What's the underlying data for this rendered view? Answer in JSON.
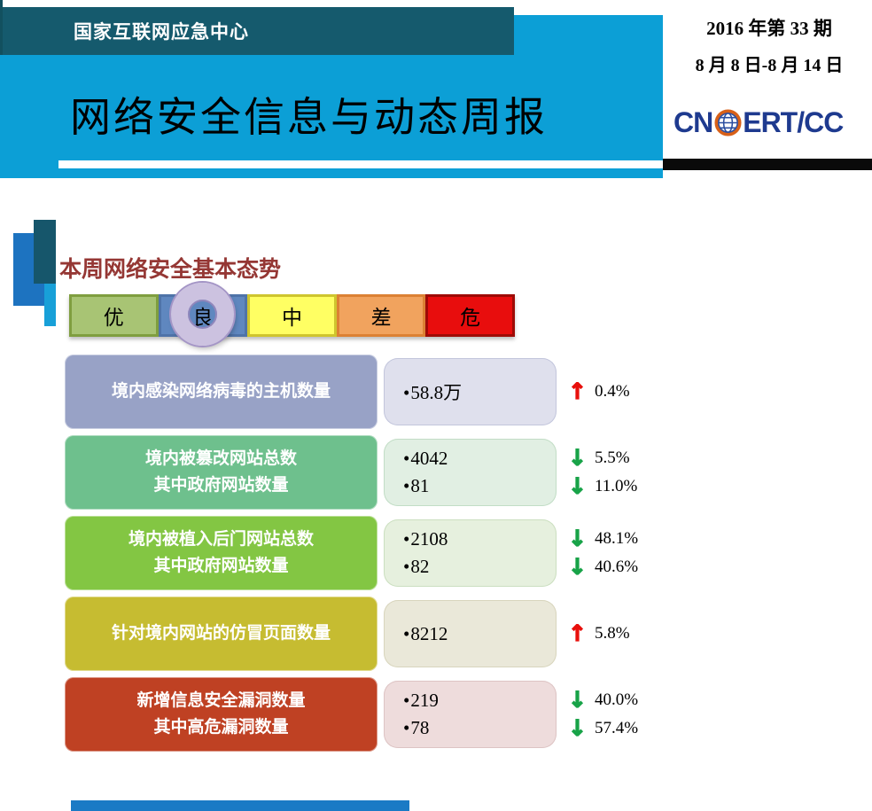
{
  "header": {
    "agency": "国家互联网应急中心",
    "title": "网络安全信息与动态周报",
    "issue": "2016 年第 33 期",
    "date_range": "8 月 8 日-8 月 14 日",
    "logo_left": "CN",
    "logo_right": "ERT/CC"
  },
  "section": {
    "title": "本周网络安全基本态势"
  },
  "scale": {
    "current_level": "良",
    "levels": [
      {
        "label": "优",
        "fill": "#a8c474",
        "border": "#7f9e3f",
        "current": false
      },
      {
        "label": "良",
        "fill": "#5f87bf",
        "border": "#4f73a8",
        "current": true
      },
      {
        "label": "中",
        "fill": "#ffff63",
        "border": "#cfc52e",
        "current": false
      },
      {
        "label": "差",
        "fill": "#f1a35e",
        "border": "#dc8134",
        "current": false
      },
      {
        "label": "危",
        "fill": "#e80d0d",
        "border": "#9e0b06",
        "current": false
      }
    ]
  },
  "rows": [
    {
      "label_lines": [
        "境内感染网络病毒的主机数量"
      ],
      "values": [
        "58.8万"
      ],
      "changes": [
        {
          "direction": "up",
          "pct": "0.4%"
        }
      ],
      "label_bg": "#98a2c6",
      "value_bg": "#dfe0ed",
      "value_border": "#c3c6dc"
    },
    {
      "label_lines": [
        "境内被篡改网站总数",
        "其中政府网站数量"
      ],
      "values": [
        "4042",
        "81"
      ],
      "changes": [
        {
          "direction": "down",
          "pct": "5.5%"
        },
        {
          "direction": "down",
          "pct": "11.0%"
        }
      ],
      "label_bg": "#6ec08d",
      "value_bg": "#e1efe3",
      "value_border": "#c2ddc6"
    },
    {
      "label_lines": [
        "境内被植入后门网站总数",
        "其中政府网站数量"
      ],
      "values": [
        "2108",
        "82"
      ],
      "changes": [
        {
          "direction": "down",
          "pct": "48.1%"
        },
        {
          "direction": "down",
          "pct": "40.6%"
        }
      ],
      "label_bg": "#83c643",
      "value_bg": "#e6f0de",
      "value_border": "#cbdfc0"
    },
    {
      "label_lines": [
        "针对境内网站的仿冒页面数量"
      ],
      "values": [
        "8212"
      ],
      "changes": [
        {
          "direction": "up",
          "pct": "5.8%"
        }
      ],
      "label_bg": "#c6bc31",
      "value_bg": "#eae8d9",
      "value_border": "#d8d5bd"
    },
    {
      "label_lines": [
        "新增信息安全漏洞数量",
        "其中高危漏洞数量"
      ],
      "values": [
        "219",
        "78"
      ],
      "changes": [
        {
          "direction": "down",
          "pct": "40.0%"
        },
        {
          "direction": "down",
          "pct": "57.4%"
        }
      ],
      "label_bg": "#bf4123",
      "value_bg": "#eedcdc",
      "value_border": "#ddc4c4"
    }
  ],
  "icons": {
    "bullet": "•",
    "up_arrow": "↑",
    "down_arrow": "↓"
  },
  "colors": {
    "up": "#e8100c",
    "down": "#18a348",
    "banner_blue": "#0c9fd6",
    "header_teal": "#155a6d",
    "logo_navy": "#1e3a8f"
  }
}
